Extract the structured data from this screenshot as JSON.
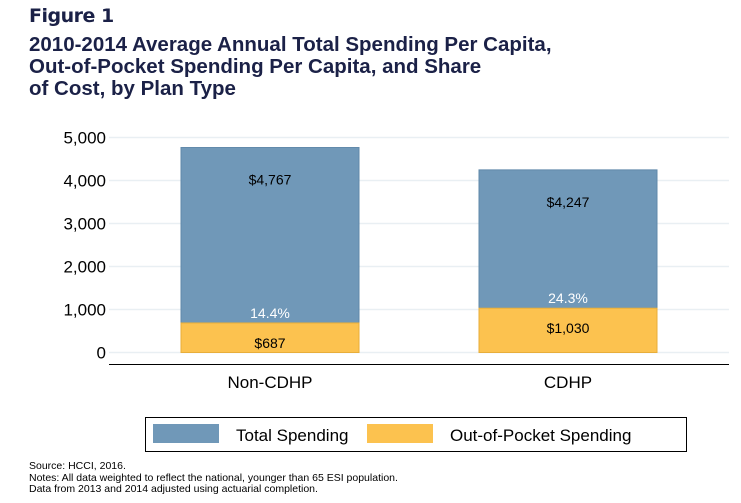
{
  "figure_label": "Figure 1",
  "title_lines": [
    "2010-2014 Average Annual Total Spending Per Capita,",
    "Out-of-Pocket Spending Per Capita, and Share",
    "of Cost, by Plan Type"
  ],
  "notes": [
    "Source: HCCI, 2016.",
    "Notes: All data weighted to reflect the national, younger than 65 ESI population.",
    "Data from 2013 and 2014 adjusted using actuarial completion."
  ],
  "colors": {
    "total": "#7098b8",
    "total_edge": "#5f88aa",
    "oop": "#fcc24f",
    "oop_edge": "#e8ae3a",
    "grid": "#e9eff3",
    "title": "#1b2147"
  },
  "chart_data": {
    "type": "bar",
    "stacked": "overlay",
    "title": "2010-2014 Average Annual Total Spending Per Capita, Out-of-Pocket Spending Per Capita, and Share of Cost, by Plan Type",
    "categories": [
      "Non-CDHP",
      "CDHP"
    ],
    "series": [
      {
        "name": "Total Spending",
        "values": [
          4767,
          4247
        ],
        "labels": [
          "$4,767",
          "$4,247"
        ]
      },
      {
        "name": "Out-of-Pocket Spending",
        "values": [
          687,
          1030
        ],
        "labels": [
          "$687",
          "$1,030"
        ]
      }
    ],
    "share_labels": [
      "14.4%",
      "24.3%"
    ],
    "xlabel": "",
    "ylabel": "",
    "ylim": [
      0,
      5000
    ],
    "yticks": [
      0,
      1000,
      2000,
      3000,
      4000,
      5000
    ],
    "ytick_labels": [
      "0",
      "1,000",
      "2,000",
      "3,000",
      "4,000",
      "5,000"
    ],
    "grid": true,
    "legend": {
      "placement": "bottom",
      "entries": [
        "Total Spending",
        "Out-of-Pocket Spending"
      ]
    }
  }
}
